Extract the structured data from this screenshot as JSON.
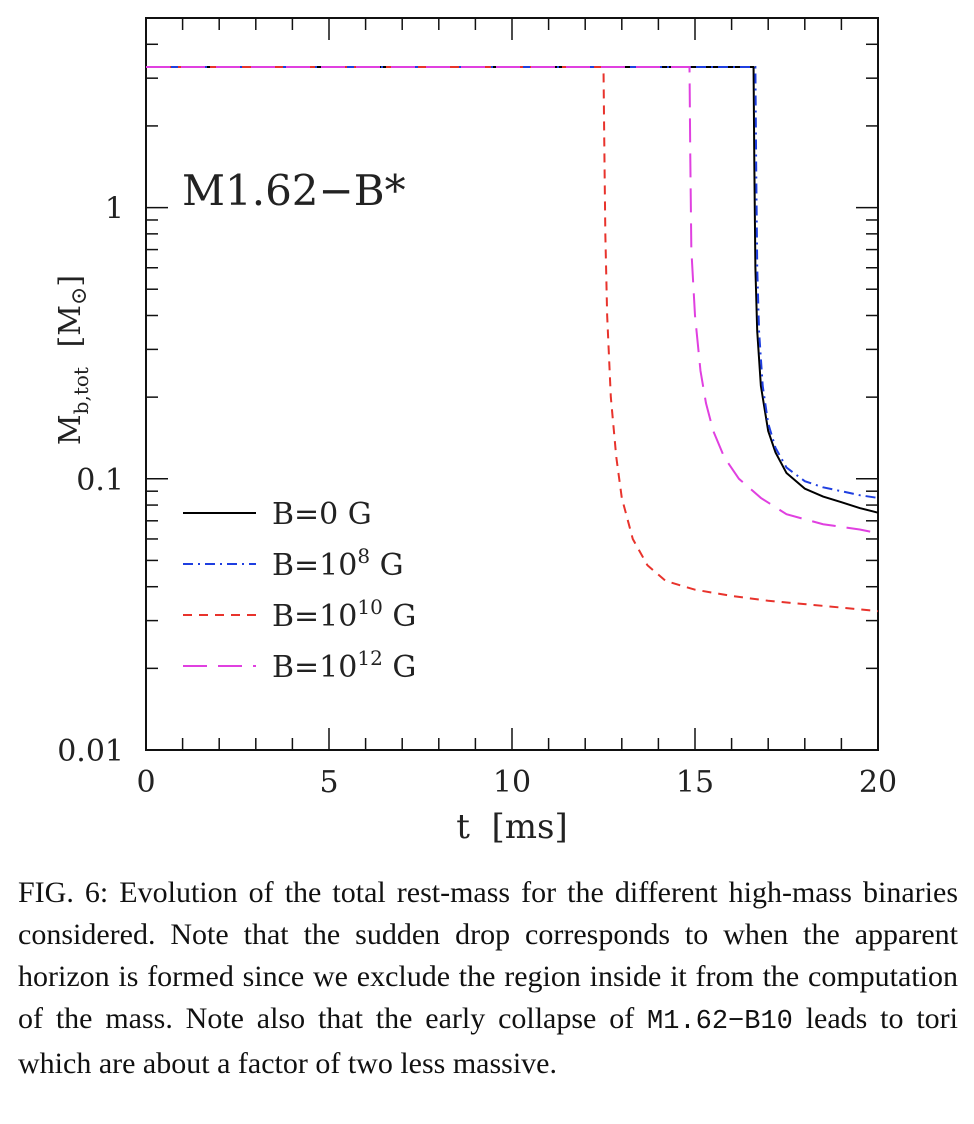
{
  "chart_data": {
    "type": "line",
    "annotation": "M1.62−B*",
    "xlabel": "t  [ms]",
    "ylabel": {
      "main": "M",
      "subscript": "b,tot",
      "unit": "[M",
      "unit_symbol": "⊙",
      "unit_close": "]"
    },
    "xlim": [
      0,
      20
    ],
    "ylim": [
      0.01,
      5
    ],
    "yscale": "log",
    "x_ticks": [
      "0",
      "5",
      "10",
      "15",
      "20"
    ],
    "y_ticks": [
      "0.01",
      "0.1",
      "1"
    ],
    "legend_position": "lower-left",
    "series": [
      {
        "name": "B=0 G",
        "name_parts": {
          "pre": "B=0 G",
          "sup": "",
          "post": ""
        },
        "color": "#000000",
        "style": "solid",
        "x": [
          0,
          16.6,
          16.62,
          16.65,
          16.7,
          16.8,
          17.0,
          17.2,
          17.5,
          18.0,
          18.5,
          19.0,
          19.5,
          20.0
        ],
        "y": [
          3.3,
          3.3,
          1.5,
          0.6,
          0.35,
          0.22,
          0.15,
          0.125,
          0.105,
          0.092,
          0.086,
          0.082,
          0.078,
          0.075
        ]
      },
      {
        "name": "B=10⁸ G",
        "name_parts": {
          "pre": "B=10",
          "sup": "8",
          "post": " G"
        },
        "color": "#1f3fe0",
        "style": "dashdot",
        "x": [
          0,
          16.65,
          16.67,
          16.7,
          16.75,
          16.85,
          17.0,
          17.2,
          17.5,
          18.0,
          18.5,
          19.0,
          19.5,
          20.0
        ],
        "y": [
          3.3,
          3.3,
          1.5,
          0.6,
          0.35,
          0.22,
          0.16,
          0.13,
          0.11,
          0.098,
          0.093,
          0.09,
          0.087,
          0.085
        ]
      },
      {
        "name": "B=10¹⁰ G",
        "name_parts": {
          "pre": "B=10",
          "sup": "10",
          "post": " G"
        },
        "color": "#e8332c",
        "style": "dashed",
        "x": [
          0,
          12.5,
          12.52,
          12.55,
          12.6,
          12.7,
          12.85,
          13.0,
          13.3,
          13.7,
          14.2,
          15.0,
          16.0,
          17.0,
          18.0,
          19.0,
          20.0
        ],
        "y": [
          3.3,
          3.3,
          1.8,
          0.8,
          0.4,
          0.2,
          0.12,
          0.085,
          0.06,
          0.048,
          0.042,
          0.039,
          0.037,
          0.0355,
          0.0345,
          0.0335,
          0.0325
        ]
      },
      {
        "name": "B=10¹² G",
        "name_parts": {
          "pre": "B=10",
          "sup": "12",
          "post": " G"
        },
        "color": "#e040e0",
        "style": "longdash",
        "x": [
          0,
          14.85,
          14.87,
          14.9,
          15.0,
          15.15,
          15.3,
          15.5,
          15.8,
          16.2,
          16.8,
          17.5,
          18.5,
          19.5,
          20.0
        ],
        "y": [
          3.3,
          3.3,
          1.6,
          0.7,
          0.4,
          0.25,
          0.19,
          0.15,
          0.12,
          0.1,
          0.085,
          0.074,
          0.068,
          0.065,
          0.063
        ]
      }
    ]
  },
  "caption": {
    "label": "FIG. 6:",
    "text_before": " Evolution of the total rest-mass for the different high-mass binaries considered. Note that the sudden drop corresponds to when the apparent horizon is formed since we exclude the region inside it from the computation of the mass. Note also that the early collapse of ",
    "code": "M1.62−B10",
    "text_after": " leads to tori which are about a factor of two less massive."
  }
}
